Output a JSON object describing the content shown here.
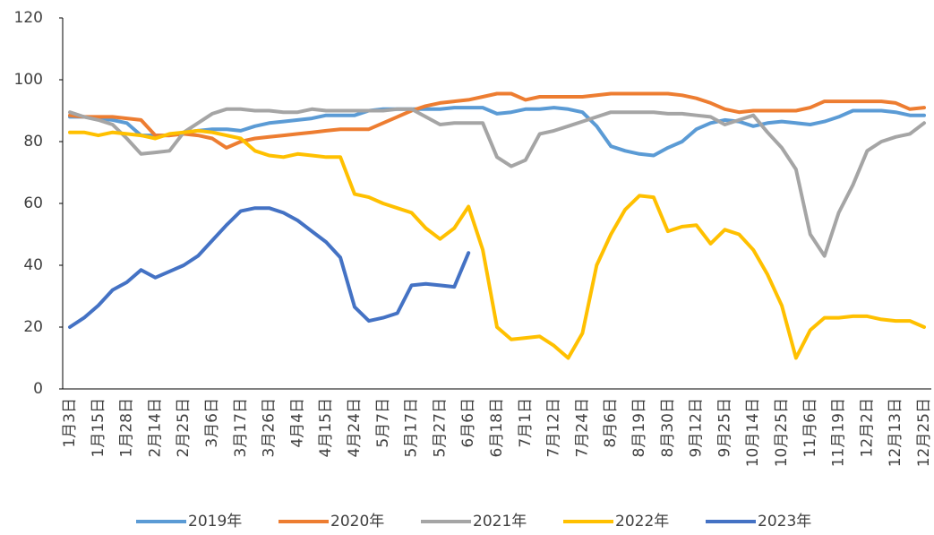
{
  "chart_data": {
    "type": "line",
    "categories": [
      "1月3日",
      null,
      "1月15日",
      null,
      "1月28日",
      null,
      "2月14日",
      null,
      "2月25日",
      null,
      "3月6日",
      null,
      "3月17日",
      null,
      "3月26日",
      null,
      "4月4日",
      null,
      "4月15日",
      null,
      "4月24日",
      null,
      "5月7日",
      null,
      "5月17日",
      null,
      "5月27日",
      null,
      "6月6日",
      null,
      "6月18日",
      null,
      "7月1日",
      null,
      "7月12日",
      null,
      "7月24日",
      null,
      "8月6日",
      null,
      "8月19日",
      null,
      "8月30日",
      null,
      "9月12日",
      null,
      "9月25日",
      null,
      "10月14日",
      null,
      "10月25日",
      null,
      "11月6日",
      null,
      "11月19日",
      null,
      "12月2日",
      null,
      "12月13日",
      null,
      "12月25日"
    ],
    "series": [
      {
        "name": "2019年",
        "color": "#5b9bd5",
        "values": [
          88,
          88,
          87.5,
          87,
          86,
          82,
          82,
          82,
          83,
          83.5,
          84,
          84,
          83.5,
          85,
          86,
          86.5,
          87,
          87.5,
          88.5,
          88.5,
          88.5,
          90,
          90.5,
          90.5,
          90.5,
          90.5,
          90.5,
          91,
          91,
          91,
          89,
          89.5,
          90.5,
          90.5,
          91,
          90.5,
          89.5,
          85,
          78.5,
          77,
          76,
          75.5,
          78,
          80,
          84,
          86,
          87,
          86.5,
          85,
          86,
          86.5,
          86,
          85.5,
          86.5,
          88,
          90,
          90,
          90,
          89.5,
          88.5,
          88.5
        ]
      },
      {
        "name": "2020年",
        "color": "#ed7d31",
        "values": [
          88.5,
          88,
          88,
          88,
          87.5,
          87,
          82,
          82,
          82.5,
          82,
          81,
          78,
          80,
          81,
          81.5,
          82,
          82.5,
          83,
          83.5,
          84,
          84,
          84,
          86,
          88,
          90,
          91.5,
          92.5,
          93,
          93.5,
          94.5,
          95.5,
          95.5,
          93.5,
          94.5,
          94.5,
          94.5,
          94.5,
          95,
          95.5,
          95.5,
          95.5,
          95.5,
          95.5,
          95,
          94,
          92.5,
          90.5,
          89.5,
          90,
          90,
          90,
          90,
          91,
          93,
          93,
          93,
          93,
          93,
          92.5,
          90.5,
          91
        ]
      },
      {
        "name": "2021年",
        "color": "#a5a5a5",
        "values": [
          89.5,
          88,
          87,
          85.5,
          81,
          76,
          76.5,
          77,
          83,
          86,
          89,
          90.5,
          90.5,
          90,
          90,
          89.5,
          89.5,
          90.5,
          90,
          90,
          90,
          90,
          90,
          90.5,
          90.5,
          88,
          85.5,
          86,
          86,
          86,
          75,
          72,
          74,
          82.5,
          83.5,
          85,
          86.5,
          88,
          89.5,
          89.5,
          89.5,
          89.5,
          89,
          89,
          88.5,
          88,
          85.5,
          87,
          88.5,
          83,
          78,
          71,
          50,
          43,
          57,
          66,
          77,
          80,
          81.5,
          82.5,
          86
        ]
      },
      {
        "name": "2022年",
        "color": "#ffc000",
        "values": [
          83,
          83,
          82,
          83,
          82.5,
          82,
          81,
          82.5,
          83,
          83.5,
          83,
          82,
          81,
          77,
          75.5,
          75,
          76,
          75.5,
          75,
          75,
          63,
          62,
          60,
          58.5,
          57,
          52,
          48.5,
          52,
          59,
          45,
          20,
          16,
          16.5,
          17,
          14,
          10,
          18,
          40,
          50,
          58,
          62.5,
          62,
          51,
          52.5,
          53,
          47,
          51.5,
          50,
          45,
          37,
          27,
          10,
          19,
          23,
          23,
          23.5,
          23.5,
          22.5,
          22,
          22,
          20
        ]
      },
      {
        "name": "2023年",
        "color": "#4472c4",
        "values": [
          20,
          23,
          27,
          32,
          34.5,
          38.5,
          36,
          38,
          40,
          43,
          48,
          53,
          57.5,
          58.5,
          58.5,
          57,
          54.5,
          51,
          47.5,
          42.5,
          26.5,
          22,
          23,
          24.5,
          33.5,
          34,
          33.5,
          33,
          44,
          null,
          null,
          null,
          null,
          null,
          null,
          null,
          null,
          null,
          null,
          null,
          null,
          null,
          null,
          null,
          null,
          null,
          null,
          null,
          null,
          null,
          null,
          null,
          null,
          null,
          null,
          null,
          null,
          null,
          null,
          null,
          null
        ]
      }
    ],
    "ylim": [
      0,
      120
    ],
    "yticks": [
      0,
      20,
      40,
      60,
      80,
      100,
      120
    ],
    "legend": "bottom"
  }
}
